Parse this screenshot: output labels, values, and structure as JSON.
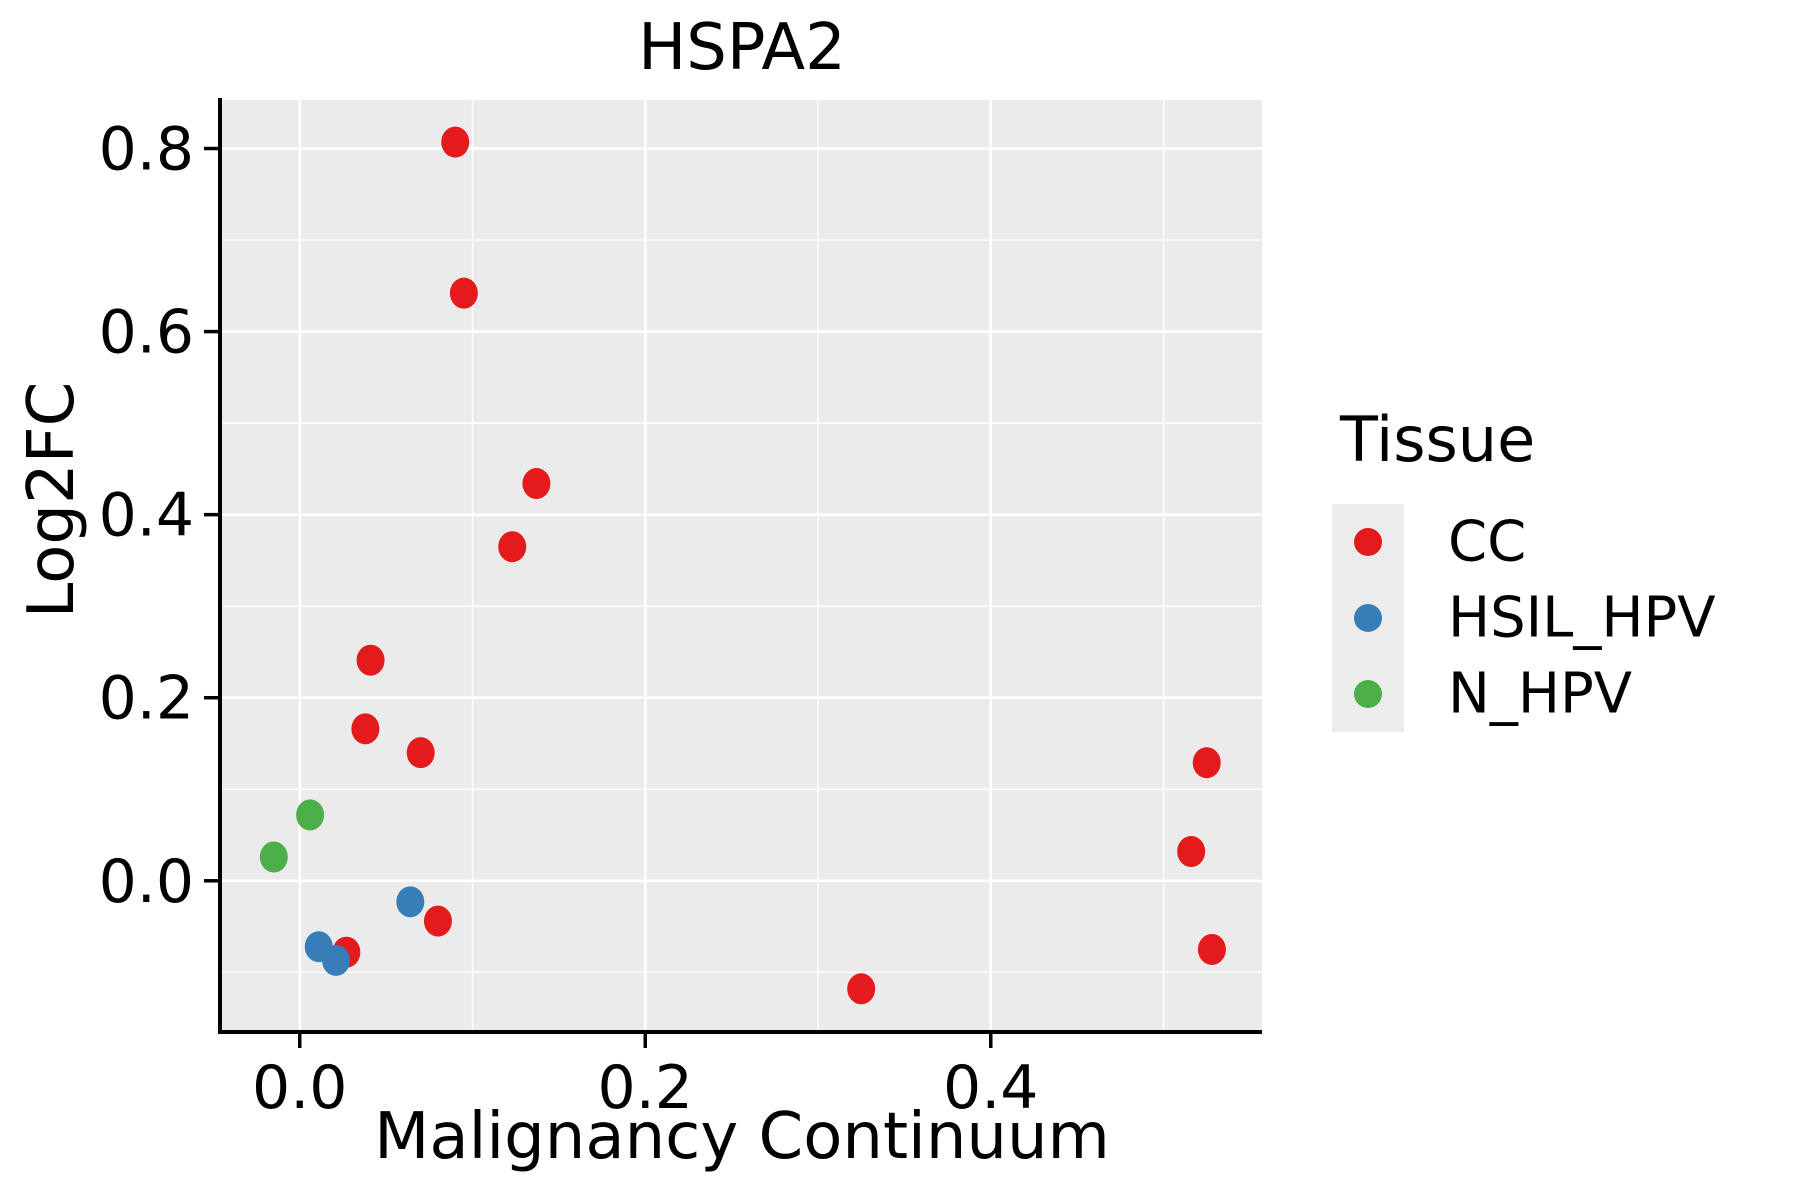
{
  "title": "HSPA2",
  "colors": {
    "panel_bg": "#EBEBEB",
    "grid": "#FFFFFF",
    "axis_line": "#000000",
    "tick_text": "#000000",
    "legend_key_bg": "#ECECEC",
    "cc": "#E41A1C",
    "hsil_hpv": "#377EB8",
    "n_hpv": "#4DAF4A"
  },
  "legend": {
    "title": "Tissue",
    "entries": [
      {
        "label": "CC",
        "color": "#E41A1C"
      },
      {
        "label": "HSIL_HPV",
        "color": "#377EB8"
      },
      {
        "label": "N_HPV",
        "color": "#4DAF4A"
      }
    ]
  },
  "chart_data": {
    "type": "scatter",
    "title": "HSPA2",
    "xlabel": "Malignancy Continuum",
    "ylabel": "Log2FC",
    "xlim": [
      -0.045,
      0.557
    ],
    "ylim": [
      -0.163,
      0.853
    ],
    "x_major_ticks": [
      0.0,
      0.2,
      0.4
    ],
    "x_tick_labels": [
      "0.0",
      "0.2",
      "0.4"
    ],
    "x_minor_ticks": [
      0.1,
      0.3,
      0.5
    ],
    "y_major_ticks": [
      0.0,
      0.2,
      0.4,
      0.6,
      0.8
    ],
    "y_tick_labels": [
      "0.0",
      "0.2",
      "0.4",
      "0.6",
      "0.8"
    ],
    "y_minor_ticks": [
      -0.1,
      0.1,
      0.3,
      0.5,
      0.7
    ],
    "grid": "major and minor white gridlines on grey panel",
    "legend_position": "right",
    "series": [
      {
        "name": "CC",
        "color": "#E41A1C",
        "points": [
          [
            0.09,
            0.807
          ],
          [
            0.095,
            0.642
          ],
          [
            0.137,
            0.434
          ],
          [
            0.123,
            0.365
          ],
          [
            0.041,
            0.241
          ],
          [
            0.038,
            0.166
          ],
          [
            0.07,
            0.14
          ],
          [
            0.08,
            -0.044
          ],
          [
            0.027,
            -0.078
          ],
          [
            0.325,
            -0.118
          ],
          [
            0.525,
            0.129
          ],
          [
            0.516,
            0.032
          ],
          [
            0.528,
            -0.075
          ]
        ]
      },
      {
        "name": "HSIL_HPV",
        "color": "#377EB8",
        "points": [
          [
            0.064,
            -0.023
          ],
          [
            0.011,
            -0.072
          ],
          [
            0.021,
            -0.087
          ]
        ]
      },
      {
        "name": "N_HPV",
        "color": "#4DAF4A",
        "points": [
          [
            0.006,
            0.072
          ],
          [
            -0.015,
            0.026
          ]
        ]
      }
    ]
  }
}
